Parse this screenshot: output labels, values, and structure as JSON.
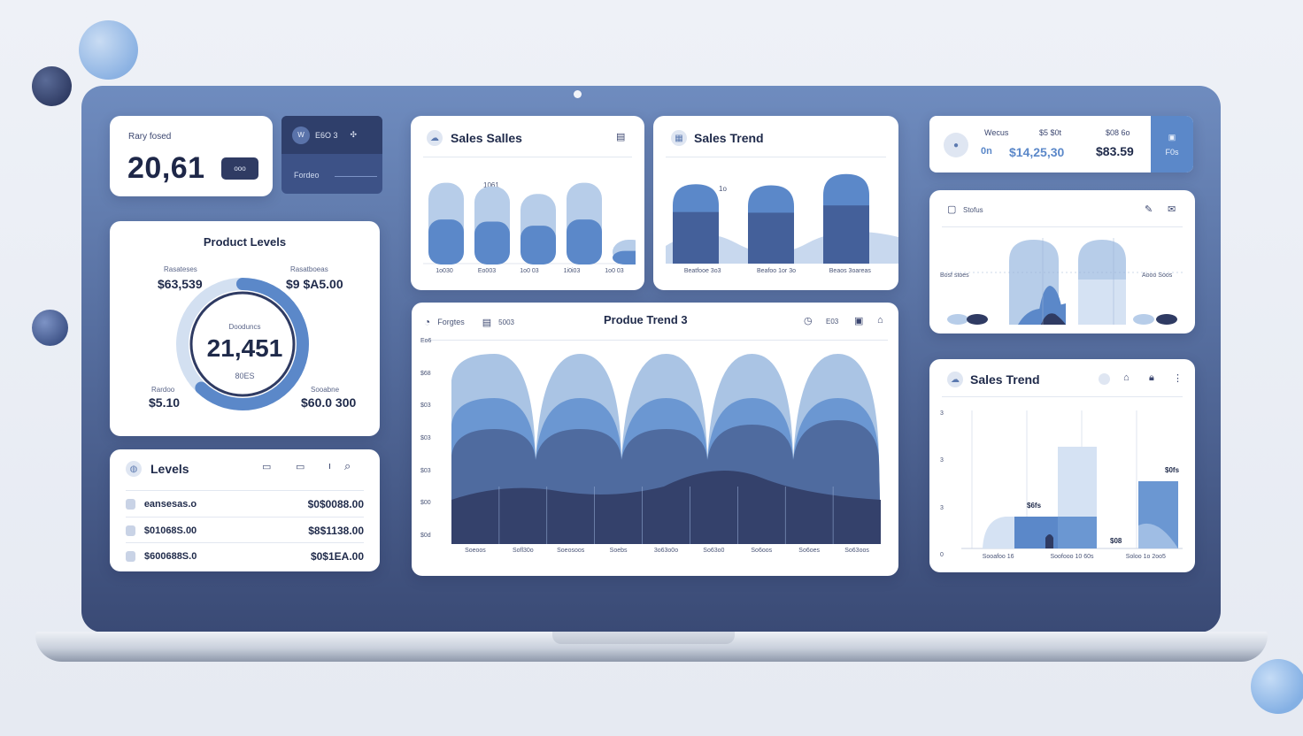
{
  "kpi": {
    "label": "Rary fosed",
    "value": "20,61",
    "button": "ooo"
  },
  "mini_panel": {
    "top_badge": "W",
    "top_text": "E6O 3",
    "bottom_text": "Fordeo"
  },
  "sales_card_1": {
    "title": "Sales Salles",
    "note": "1061",
    "x_labels": [
      "1o030",
      "Eo003",
      "1o0 03",
      "1i0i03",
      "1o0 03"
    ],
    "bars": [
      0.66,
      0.63,
      0.57,
      0.66,
      0.2
    ]
  },
  "sales_card_2": {
    "title": "Sales Trend",
    "note": "1o",
    "x_labels": [
      "Beatfooe 3o3",
      "Beafoo 1or 3o",
      "Beaos 3oareas"
    ],
    "bars": [
      0.78,
      0.77,
      0.88
    ]
  },
  "gauge_card": {
    "title": "Product Levels",
    "tl_label": "Rasateses",
    "tl_value": "$63,539",
    "tr_label": "Rasatboeas",
    "tr_value": "$9 $A5.00",
    "bl_label": "Rardoo",
    "bl_value": "$5.10",
    "br_label": "Sooabne",
    "br_value": "$60.0 300",
    "center_label": "Dooduncs",
    "center_value": "21,451",
    "center_sub": "80ES",
    "fill": 0.62
  },
  "levels": {
    "title": "Levels",
    "rows": [
      {
        "name": "eansesas.o",
        "qty": "$0",
        "amount": "$0088.00"
      },
      {
        "name": "$01068S.00",
        "qty": "$8",
        "amount": "$1138.00"
      },
      {
        "name": "$600688S.0",
        "qty": "$0",
        "amount": "$1EA.00"
      }
    ]
  },
  "trend_big": {
    "title": "Produe Trend 3",
    "left_label": "Forgtes",
    "mid_label": "5003",
    "right_label": "E03",
    "y_labels": [
      "Eo6",
      "$68",
      "$03",
      "$03",
      "$03",
      "$00",
      "$0d"
    ],
    "x_labels": [
      "Soeoos",
      "Sofl30o",
      "Soeosoos",
      "Soebs",
      "3o63o0o",
      "So63o0",
      "So6oos",
      "So6oes",
      "So63oos"
    ]
  },
  "top_right": {
    "label_1": "Wecus",
    "label_2": "$5 $0t",
    "label_3": "$08 6o",
    "sub_1": "0n",
    "value_1": "$14,25,30",
    "value_2": "$83.59",
    "side_label": "F0s"
  },
  "stock_card": {
    "title": "Stofus",
    "left_label": "Bosf stoes",
    "right_label": "Aooo Soos"
  },
  "sales_trend_right": {
    "title": "Sales Trend",
    "y_labels": [
      "3",
      "3",
      "3",
      "0"
    ],
    "bar_labels": [
      "$6fs",
      "$08",
      "$0fs"
    ],
    "x_labels": [
      "Sooafoo 16",
      "Soofooo 10 60s",
      "Soloo 1o 2oo5"
    ]
  },
  "colors": {
    "accent": "#5b88c9",
    "dark": "#2f3b63",
    "light": "#b7cde9",
    "screen": "#566e9f"
  }
}
